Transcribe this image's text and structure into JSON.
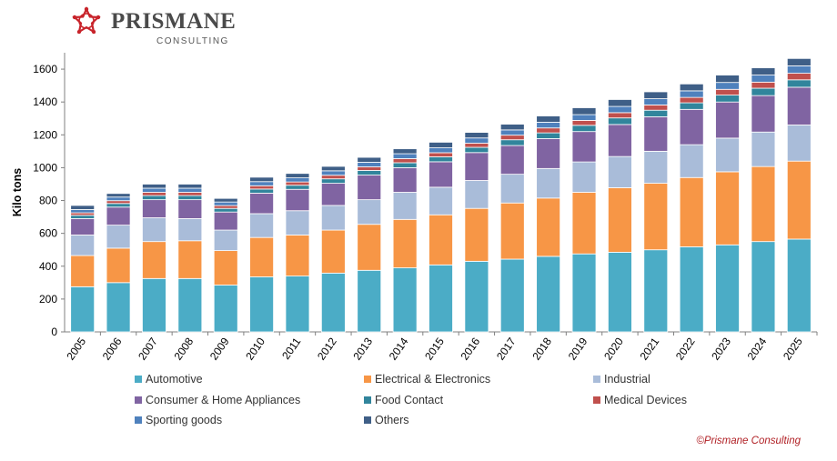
{
  "brand": {
    "name": "PRISMANE",
    "sub": "CONSULTING"
  },
  "copyright": "©Prismane Consulting",
  "colors": {
    "Automotive": "#4bacc6",
    "Electrical & Electronics": "#f79646",
    "Industrial": "#a9bcd9",
    "Consumer & Home Appliances": "#8064a2",
    "Food Contact": "#31859c",
    "Medical Devices": "#c0504d",
    "Sporting goods": "#4f81bd",
    "Others": "#3f5f87"
  },
  "chart_data": {
    "type": "bar",
    "stacked": true,
    "ylabel": "Kilo tons",
    "ylim": [
      0,
      1700
    ],
    "yticks": [
      0,
      200,
      400,
      600,
      800,
      1000,
      1200,
      1400,
      1600
    ],
    "legend_position": "bottom",
    "categories": [
      "2005",
      "2006",
      "2007",
      "2008",
      "2009",
      "2010",
      "2011",
      "2012",
      "2013",
      "2014",
      "2015",
      "2016",
      "2017",
      "2018",
      "2019",
      "2020",
      "2021",
      "2022",
      "2023",
      "2024",
      "2025"
    ],
    "series": [
      {
        "name": "Automotive",
        "values": [
          275,
          300,
          325,
          325,
          285,
          335,
          340,
          358,
          375,
          390,
          408,
          430,
          443,
          460,
          475,
          485,
          500,
          518,
          530,
          550,
          565
        ]
      },
      {
        "name": "Electrical & Electronics",
        "values": [
          190,
          210,
          225,
          230,
          210,
          240,
          250,
          262,
          280,
          295,
          305,
          322,
          342,
          355,
          375,
          393,
          405,
          422,
          445,
          457,
          475
        ]
      },
      {
        "name": "Industrial",
        "values": [
          125,
          140,
          145,
          135,
          125,
          145,
          148,
          150,
          150,
          165,
          168,
          170,
          175,
          180,
          185,
          190,
          195,
          200,
          205,
          210,
          220
        ]
      },
      {
        "name": "Consumer & Home Appliances",
        "values": [
          100,
          110,
          110,
          115,
          110,
          125,
          130,
          135,
          150,
          150,
          155,
          170,
          175,
          182,
          185,
          195,
          210,
          215,
          220,
          222,
          230
        ]
      },
      {
        "name": "Food Contact",
        "values": [
          20,
          22,
          25,
          25,
          22,
          25,
          25,
          27,
          28,
          30,
          30,
          32,
          35,
          35,
          38,
          40,
          40,
          40,
          42,
          45,
          45
        ]
      },
      {
        "name": "Medical Devices",
        "values": [
          15,
          17,
          20,
          20,
          17,
          20,
          20,
          22,
          22,
          25,
          25,
          25,
          28,
          30,
          30,
          32,
          32,
          33,
          35,
          37,
          40
        ]
      },
      {
        "name": "Sporting goods",
        "values": [
          20,
          22,
          25,
          25,
          22,
          25,
          25,
          27,
          28,
          30,
          30,
          32,
          32,
          35,
          35,
          38,
          38,
          40,
          42,
          43,
          45
        ]
      },
      {
        "name": "Others",
        "values": [
          25,
          22,
          25,
          25,
          22,
          27,
          27,
          27,
          30,
          30,
          34,
          34,
          35,
          38,
          42,
          42,
          42,
          42,
          45,
          44,
          45
        ]
      }
    ]
  }
}
